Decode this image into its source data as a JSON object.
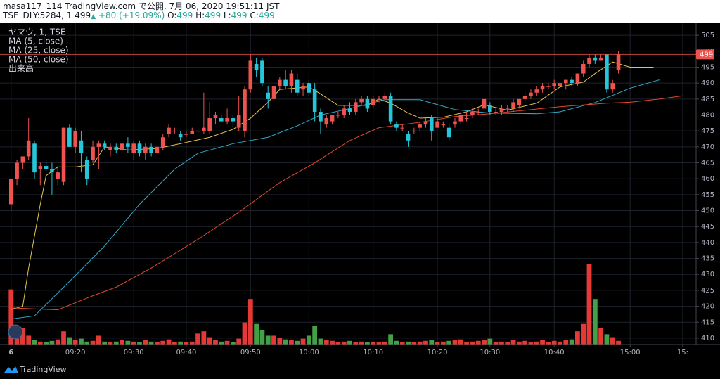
{
  "header": {
    "publisher": "masa117_114 TradingView.com で公開, 7月 06, 2020 19:51:11 JST",
    "symbol": "TSE_DLY:5284, 1",
    "last": "499",
    "change": "+80 (+19.09%)",
    "ohlc": [
      {
        "label": "O:",
        "value": "499"
      },
      {
        "label": "H:",
        "value": "499"
      },
      {
        "label": "L:",
        "value": "499"
      },
      {
        "label": "C:",
        "value": "499"
      }
    ]
  },
  "brand": "TradingView",
  "chart_data": {
    "type": "candlestick",
    "title": "ヤマウ, 1, TSE",
    "volume_name": "出来高",
    "up_color": "#ef5350",
    "down_color": "#26c6da",
    "volume_up_color": "#e53935",
    "volume_down_color": "#43a047",
    "grid": true,
    "last_price": 499,
    "last_price_color": "#ef5350",
    "xlim": [
      -1.9,
      117.3
    ],
    "xticks": [
      {
        "value": 0,
        "label": "6"
      },
      {
        "value": 11,
        "label": "09:20"
      },
      {
        "value": 21,
        "label": "09:30"
      },
      {
        "value": 30,
        "label": "09:40"
      },
      {
        "value": 41,
        "label": "09:50"
      },
      {
        "value": 51,
        "label": "10:00"
      },
      {
        "value": 62,
        "label": "10:10"
      },
      {
        "value": 73,
        "label": "10:20"
      },
      {
        "value": 82,
        "label": "10:30"
      },
      {
        "value": 93,
        "label": "10:40"
      },
      {
        "value": 106,
        "label": "15:00"
      },
      {
        "value": 115,
        "label": "15:"
      }
    ],
    "ylim": [
      408,
      509
    ],
    "yticks": [
      410,
      415,
      420,
      425,
      430,
      435,
      440,
      445,
      450,
      455,
      460,
      465,
      470,
      475,
      480,
      485,
      490,
      495,
      500,
      505
    ],
    "x": [
      0,
      1,
      2,
      3,
      4,
      5,
      6,
      7,
      8,
      9,
      10,
      11,
      12,
      13,
      14,
      15,
      16,
      17,
      18,
      19,
      20,
      21,
      22,
      23,
      24,
      25,
      26,
      27,
      28,
      29,
      30,
      31,
      32,
      33,
      34,
      35,
      36,
      37,
      38,
      39,
      40,
      41,
      42,
      43,
      44,
      45,
      46,
      47,
      48,
      49,
      50,
      51,
      52,
      53,
      54,
      55,
      56,
      57,
      58,
      59,
      60,
      61,
      62,
      63,
      64,
      65,
      66,
      67,
      68,
      69,
      70,
      71,
      72,
      73,
      74,
      75,
      76,
      77,
      78,
      79,
      80,
      81,
      82,
      83,
      84,
      85,
      86,
      87,
      88,
      89,
      90,
      91,
      92,
      93,
      94,
      95,
      96,
      97,
      98,
      99,
      100,
      101,
      102,
      103,
      104
    ],
    "ohlc": [
      [
        452,
        460,
        450,
        460
      ],
      [
        460,
        466,
        458,
        465
      ],
      [
        465,
        467,
        463,
        467
      ],
      [
        467,
        479,
        466,
        472
      ],
      [
        471,
        472,
        460,
        462
      ],
      [
        463,
        465,
        458,
        464
      ],
      [
        464,
        466,
        462,
        463
      ],
      [
        463,
        465,
        455,
        462
      ],
      [
        460,
        464,
        458,
        462
      ],
      [
        459,
        476,
        458,
        476
      ],
      [
        476,
        477,
        470,
        470
      ],
      [
        470,
        476,
        468,
        475
      ],
      [
        472,
        475,
        462,
        468
      ],
      [
        466,
        467,
        458,
        460
      ],
      [
        466,
        472,
        465,
        470
      ],
      [
        470,
        472,
        463,
        471
      ],
      [
        471,
        472,
        469,
        470
      ],
      [
        469,
        471,
        467,
        470
      ],
      [
        470,
        471,
        468,
        469
      ],
      [
        469,
        472,
        468,
        471
      ],
      [
        471,
        473,
        468,
        470
      ],
      [
        468,
        472,
        466,
        471
      ],
      [
        471,
        472,
        467,
        468
      ],
      [
        468,
        471,
        466,
        470
      ],
      [
        470,
        471,
        467,
        468
      ],
      [
        468,
        471,
        467,
        470
      ],
      [
        470,
        474,
        469,
        473
      ],
      [
        474,
        477,
        473,
        476
      ],
      [
        475,
        476,
        474,
        475
      ],
      [
        474,
        475,
        472,
        473
      ],
      [
        474,
        475,
        473,
        474
      ],
      [
        474,
        476,
        474,
        475
      ],
      [
        475,
        476,
        474,
        475
      ],
      [
        475,
        487,
        474,
        476
      ],
      [
        475,
        484,
        474,
        479
      ],
      [
        479,
        481,
        477,
        480
      ],
      [
        479,
        480,
        478,
        478
      ],
      [
        478,
        482,
        477,
        479
      ],
      [
        479,
        480,
        476,
        478
      ],
      [
        476,
        486,
        475,
        480
      ],
      [
        475,
        489,
        473,
        488
      ],
      [
        488,
        499,
        487,
        497
      ],
      [
        496,
        498,
        492,
        494
      ],
      [
        497,
        498,
        489,
        490
      ],
      [
        487,
        489,
        482,
        485
      ],
      [
        485,
        490,
        484,
        489
      ],
      [
        489,
        492,
        488,
        491
      ],
      [
        491,
        494,
        488,
        489
      ],
      [
        489,
        494,
        487,
        493
      ],
      [
        491,
        493,
        486,
        487
      ],
      [
        488,
        490,
        486,
        489
      ],
      [
        490,
        491,
        486,
        487
      ],
      [
        488,
        490,
        478,
        481
      ],
      [
        481,
        482,
        474,
        478
      ],
      [
        477,
        480,
        476,
        479
      ],
      [
        478,
        480,
        477,
        480
      ],
      [
        480,
        481,
        479,
        480
      ],
      [
        480,
        483,
        479,
        482
      ],
      [
        482,
        484,
        480,
        481
      ],
      [
        481,
        485,
        480,
        484
      ],
      [
        484,
        486,
        483,
        485
      ],
      [
        485,
        486,
        481,
        482
      ],
      [
        483,
        486,
        482,
        485
      ],
      [
        485,
        486,
        484,
        485
      ],
      [
        485,
        487,
        484,
        486
      ],
      [
        486,
        487,
        477,
        478
      ],
      [
        477,
        478,
        475,
        476
      ],
      [
        476,
        477,
        475,
        476
      ],
      [
        474,
        475,
        470,
        472
      ],
      [
        475,
        476,
        474,
        475
      ],
      [
        476,
        478,
        475,
        477
      ],
      [
        477,
        479,
        476,
        478
      ],
      [
        479,
        480,
        472,
        475
      ],
      [
        476,
        479,
        476,
        478
      ],
      [
        477,
        478,
        476,
        477
      ],
      [
        476,
        477,
        472,
        473
      ],
      [
        477,
        479,
        476,
        478
      ],
      [
        478,
        481,
        477,
        480
      ],
      [
        479,
        481,
        478,
        479
      ],
      [
        480,
        482,
        479,
        481
      ],
      [
        481,
        482,
        480,
        481
      ],
      [
        482,
        485,
        481,
        485
      ],
      [
        483,
        484,
        480,
        481
      ],
      [
        481,
        482,
        480,
        481
      ],
      [
        481,
        483,
        480,
        482
      ],
      [
        482,
        483,
        481,
        482
      ],
      [
        482,
        485,
        481,
        484
      ],
      [
        483,
        485,
        482,
        485
      ],
      [
        485,
        487,
        484,
        486
      ],
      [
        486,
        488,
        485,
        487
      ],
      [
        487,
        489,
        486,
        488
      ],
      [
        488,
        490,
        487,
        489
      ],
      [
        489,
        490,
        488,
        489
      ],
      [
        489,
        491,
        488,
        490
      ],
      [
        489,
        492,
        488,
        490
      ],
      [
        490,
        491,
        488,
        491
      ],
      [
        491,
        492,
        489,
        490
      ],
      [
        490,
        493,
        489,
        493
      ],
      [
        493,
        497,
        492,
        496
      ],
      [
        496,
        499,
        495,
        498
      ],
      [
        498,
        499,
        496,
        497
      ],
      [
        497,
        499,
        497,
        498
      ],
      [
        499,
        499,
        487,
        488
      ],
      [
        488,
        491,
        487,
        490
      ],
      [
        494,
        500,
        493,
        499
      ]
    ],
    "volume": [
      75,
      8,
      22,
      12,
      6,
      4,
      3,
      5,
      7,
      18,
      10,
      6,
      8,
      4,
      5,
      12,
      4,
      3,
      4,
      6,
      5,
      4,
      3,
      6,
      4,
      3,
      5,
      7,
      3,
      4,
      3,
      4,
      15,
      18,
      10,
      6,
      4,
      5,
      3,
      8,
      30,
      62,
      28,
      20,
      12,
      12,
      9,
      7,
      6,
      5,
      8,
      12,
      25,
      8,
      6,
      5,
      3,
      4,
      5,
      3,
      4,
      3,
      4,
      3,
      4,
      14,
      5,
      3,
      4,
      3,
      4,
      5,
      6,
      3,
      4,
      5,
      6,
      7,
      3,
      4,
      5,
      6,
      8,
      3,
      4,
      3,
      6,
      4,
      5,
      3,
      4,
      6,
      3,
      5,
      4,
      6,
      7,
      18,
      28,
      110,
      62,
      22,
      14,
      10,
      5
    ],
    "series": [
      {
        "name": "MA (5, close)",
        "color": "#e8c547",
        "x": [
          0,
          2,
          3,
          5,
          6,
          8,
          11,
          14,
          16,
          20,
          25,
          29,
          34,
          38,
          41,
          44,
          46,
          51,
          53,
          56,
          61,
          63,
          65,
          68,
          70,
          74,
          78,
          81,
          85,
          90,
          94,
          98,
          100,
          103,
          106,
          110
        ],
        "values": [
          419,
          420,
          432,
          452,
          461,
          463.7,
          463.7,
          464.4,
          470,
          469,
          469.5,
          471,
          473,
          475.5,
          479,
          484,
          488,
          488.8,
          486.6,
          483,
          483,
          485,
          483.7,
          480.6,
          479,
          479.3,
          481,
          483.2,
          481.5,
          483.7,
          488.8,
          490.3,
          493,
          496.6,
          495,
          495
        ]
      },
      {
        "name": "MA (25, close)",
        "color": "#2fa8c8",
        "x": [
          0,
          4,
          10,
          16,
          22,
          28,
          32,
          38,
          44,
          49,
          53,
          58,
          64,
          70,
          76,
          82,
          90,
          94,
          100,
          106,
          111
        ],
        "values": [
          416,
          417,
          427.8,
          438.9,
          452,
          463,
          468,
          471,
          473,
          476.6,
          480,
          482,
          484.8,
          484.8,
          481.7,
          480.6,
          480.4,
          481,
          483.9,
          488.4,
          491
        ]
      },
      {
        "name": "MA (50, close)",
        "color": "#e0482e",
        "x": [
          0,
          8,
          14,
          18,
          24,
          32,
          39,
          46,
          52,
          58,
          63,
          70,
          76,
          82,
          94,
          102,
          106,
          111,
          115
        ],
        "values": [
          419.5,
          418.9,
          423.3,
          426,
          432,
          441,
          449.5,
          458.8,
          465,
          472,
          476,
          477.7,
          479.5,
          480.4,
          482.6,
          483.7,
          484,
          485,
          486
        ]
      }
    ]
  }
}
